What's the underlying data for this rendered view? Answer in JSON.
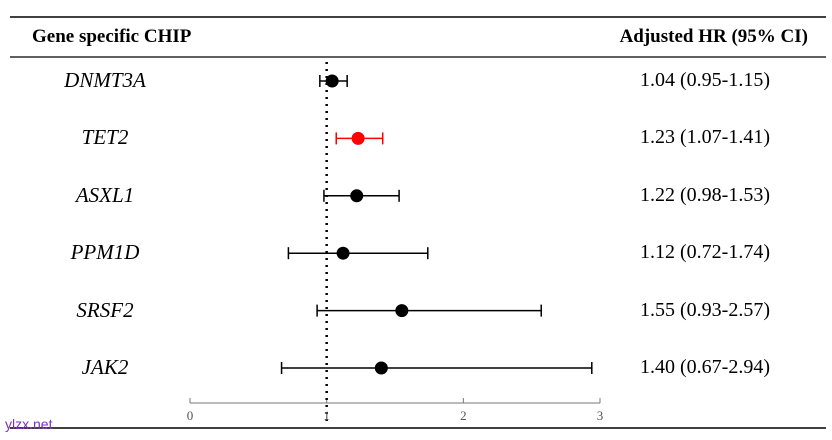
{
  "chart_data": {
    "type": "forest",
    "header_left": "Gene specific CHIP",
    "header_right": "Adjusted HR (95% CI)",
    "reference_line": 1,
    "xlim": [
      0,
      3
    ],
    "x_ticks": [
      "0",
      "1",
      "2",
      "3"
    ],
    "rows": [
      {
        "gene": "DNMT3A",
        "hr": 1.04,
        "lo": 0.95,
        "hi": 1.15,
        "label": "1.04 (0.95-1.15)",
        "color": "#000000"
      },
      {
        "gene": "TET2",
        "hr": 1.23,
        "lo": 1.07,
        "hi": 1.41,
        "label": "1.23 (1.07-1.41)",
        "color": "#ff0000"
      },
      {
        "gene": "ASXL1",
        "hr": 1.22,
        "lo": 0.98,
        "hi": 1.53,
        "label": "1.22 (0.98-1.53)",
        "color": "#000000"
      },
      {
        "gene": "PPM1D",
        "hr": 1.12,
        "lo": 0.72,
        "hi": 1.74,
        "label": "1.12 (0.72-1.74)",
        "color": "#000000"
      },
      {
        "gene": "SRSF2",
        "hr": 1.55,
        "lo": 0.93,
        "hi": 2.57,
        "label": "1.55 (0.93-2.57)",
        "color": "#000000"
      },
      {
        "gene": "JAK2",
        "hr": 1.4,
        "lo": 0.67,
        "hi": 2.94,
        "label": "1.40 (0.67-2.94)",
        "color": "#000000"
      }
    ]
  },
  "watermark": "ylzx.net"
}
